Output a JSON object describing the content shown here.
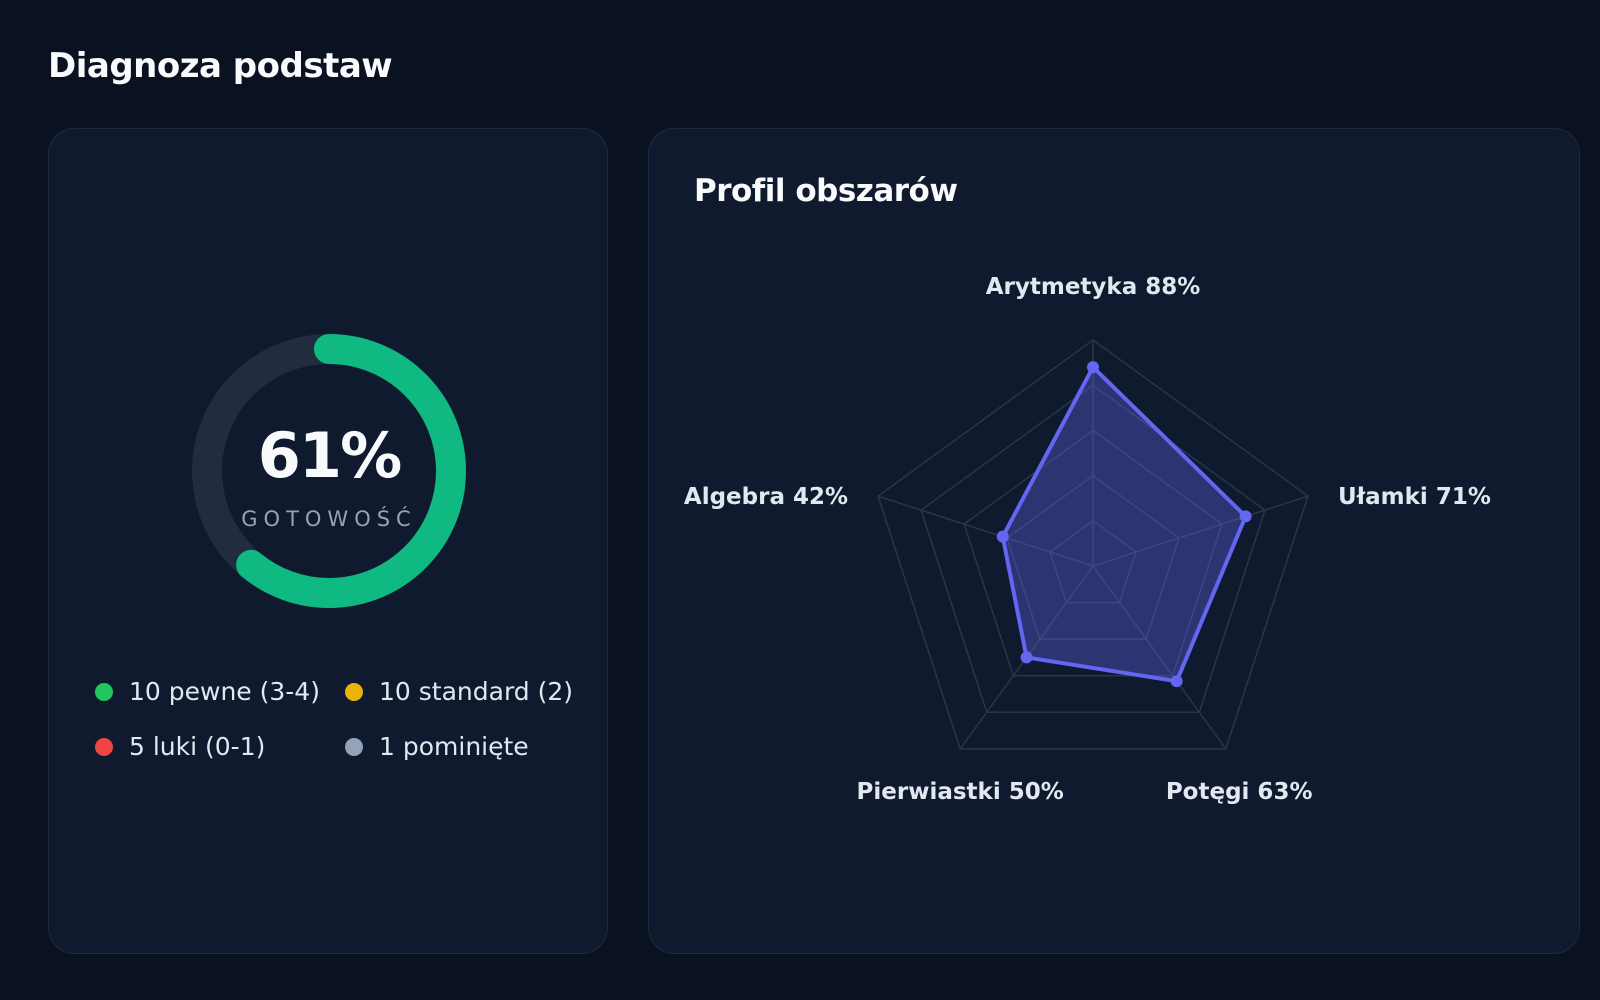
{
  "page": {
    "title": "Diagnoza podstaw"
  },
  "readiness": {
    "percent": 61,
    "value_text": "61%",
    "label": "GOTOWOŚĆ"
  },
  "legend": [
    {
      "text": "10 pewne (3-4)",
      "color": "#22c55e"
    },
    {
      "text": "10 standard (2)",
      "color": "#eab308"
    },
    {
      "text": "5 luki (0-1)",
      "color": "#ef4444"
    },
    {
      "text": "1 pominięte",
      "color": "#94a3b8"
    }
  ],
  "colors": {
    "gauge_track": "#212c3f",
    "gauge_fill": "#10b981",
    "radar_line": "#6366f1",
    "radar_fill": "rgba(99,102,241,0.35)",
    "grid": "#2a3548"
  },
  "radar": {
    "title": "Profil obszarów",
    "axes": [
      {
        "name": "Arytmetyka",
        "value": 88,
        "label": "Arytmetyka 88%"
      },
      {
        "name": "Ułamki",
        "value": 71,
        "label": "Ułamki 71%"
      },
      {
        "name": "Potęgi",
        "value": 63,
        "label": "Potęgi 63%"
      },
      {
        "name": "Pierwiastki",
        "value": 50,
        "label": "Pierwiastki 50%"
      },
      {
        "name": "Algebra",
        "value": 42,
        "label": "Algebra 42%"
      }
    ]
  },
  "chart_data": {
    "type": "radar",
    "title": "Profil obszarów",
    "categories": [
      "Arytmetyka",
      "Ułamki",
      "Potęgi",
      "Pierwiastki",
      "Algebra"
    ],
    "values": [
      88,
      71,
      63,
      50,
      42
    ],
    "range": [
      0,
      100
    ],
    "grid": true
  }
}
